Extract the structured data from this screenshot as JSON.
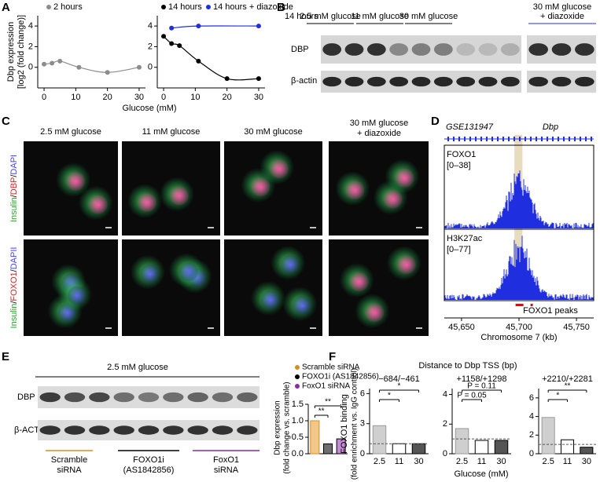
{
  "panel_labels": [
    "A",
    "B",
    "C",
    "D",
    "E",
    "F"
  ],
  "panel_b": {
    "condition": "14 hours",
    "groups": [
      "2.5 mM glucose",
      "11 mM glucose",
      "30 mM glucose"
    ],
    "diazoxide_group": [
      "30 mM glucose",
      "+ diazoxide"
    ],
    "rows": [
      "DBP",
      "β-actin"
    ]
  },
  "panel_c": {
    "columns": [
      "2.5 mM glucose",
      "11 mM glucose",
      "30 mM glucose"
    ],
    "diazoxide_column": [
      "30 mM glucose",
      "+ diazoxide"
    ],
    "rows": [
      [
        "Insulin",
        "/",
        "DBP",
        "/",
        "DAPI"
      ],
      [
        "Insulin",
        "/",
        "FOXO1",
        "/",
        "DAPII"
      ]
    ]
  },
  "panel_d": {
    "dataset": "GSE131947",
    "gene": "Dbp",
    "tracks": [
      [
        "FOXO1",
        "[0–38]"
      ],
      [
        "H3K27ac",
        "[0–77]"
      ]
    ],
    "peaks": "FOXO1 peaks",
    "xlim": [
      45635,
      45765
    ],
    "xticks": [
      {
        "value": 45650,
        "label": "45,650"
      },
      {
        "value": 45700,
        "label": "45,700"
      },
      {
        "value": 45750,
        "label": "45,750"
      }
    ],
    "xlabel": "Chromosome 7 (kb)"
  },
  "panel_e": {
    "condition": "2.5 mM glucose",
    "rows": [
      "DBP",
      "β-ACTIN"
    ],
    "groups": [
      [
        "Scramble",
        "siRNA"
      ],
      [
        "FOXO1i",
        "(AS1842856)"
      ],
      [
        "FoxO1",
        "siRNA"
      ]
    ]
  },
  "panel_f": {
    "title": "Distance to Dbp TSS (bp)",
    "ylabel": [
      "FOXO1 binding",
      "(fold enrichment vs. IgG control)"
    ],
    "xlabel": "Glucose (mM)"
  },
  "chart_data": [
    {
      "type": "line",
      "x": [
        0,
        2.5,
        5,
        11,
        20,
        30
      ],
      "series": [
        {
          "name": "2 hours",
          "color": "#8c8c8c",
          "values": [
            0.3,
            0.4,
            0.6,
            0.0,
            -0.5,
            0.0
          ]
        }
      ],
      "xlim": [
        -2,
        32
      ],
      "ylim": [
        -2,
        5
      ],
      "xticks": [
        0,
        10,
        20,
        30
      ],
      "yticks": [
        0,
        2,
        4
      ],
      "ylabel": [
        "Dbp expression",
        "[log2 (fold change)]"
      ],
      "xlabel": "Glucose (mM)"
    },
    {
      "type": "line",
      "x": [
        0,
        2.5,
        5,
        11,
        20,
        30
      ],
      "series": [
        {
          "name": "14 hours",
          "color": "#000000",
          "values": [
            3.0,
            2.3,
            2.1,
            0.6,
            -1.1,
            -1.1
          ]
        },
        {
          "name": "14 hours + diazoxide",
          "color": "#1f2fe0",
          "x": [
            2.5,
            11,
            30
          ],
          "values": [
            3.8,
            4.0,
            4.0
          ]
        }
      ],
      "xlim": [
        -2,
        32
      ],
      "ylim": [
        -2,
        5
      ],
      "xticks": [
        0,
        10,
        20,
        30
      ],
      "yticks": [
        0,
        2,
        4
      ]
    },
    {
      "type": "bar",
      "categories": [
        "Scramble siRNA",
        "FOXO1i (AS1842856)",
        "FoxO1 siRNA"
      ],
      "values": [
        1.0,
        0.3,
        0.45
      ],
      "colors": [
        "#f2c88a",
        "#6e6e6e",
        "#c58ad6"
      ],
      "label_colors": [
        "#d4901e",
        "#000000",
        "#8a2aa8"
      ],
      "ylim": [
        0,
        1.5
      ],
      "yticks": [
        {
          "value": 0,
          "label": "0.0"
        },
        {
          "value": 0.5,
          "label": "0.5"
        },
        {
          "value": 1,
          "label": "1.0"
        },
        {
          "value": 1.5,
          "label": "1.5"
        }
      ],
      "ylabel": [
        "Dbp expression",
        "(fold change vs. scramble)"
      ],
      "annotations": [
        "**",
        "**"
      ]
    },
    {
      "type": "bar",
      "title": "−684/−461",
      "categories": [
        "2.5",
        "11",
        "30"
      ],
      "values": [
        2.8,
        1.0,
        1.0
      ],
      "colors": [
        "#cfcfcf",
        "#ffffff",
        "#555555"
      ],
      "ylim": [
        0,
        6.5
      ],
      "yticks": [
        0,
        3,
        6
      ],
      "annotations": [
        "*",
        "*"
      ]
    },
    {
      "type": "bar",
      "title": "+1158/+1298",
      "categories": [
        "2.5",
        "11",
        "30"
      ],
      "values": [
        1.7,
        0.9,
        0.9
      ],
      "colors": [
        "#cfcfcf",
        "#ffffff",
        "#555555"
      ],
      "ylim": [
        0,
        4.4
      ],
      "yticks": [
        0,
        2,
        4
      ],
      "annotations": [
        "P = 0.05",
        "P = 0.11"
      ]
    },
    {
      "type": "bar",
      "title": "+2210/+2281",
      "categories": [
        "2.5",
        "11",
        "30"
      ],
      "values": [
        3.9,
        1.5,
        0.7
      ],
      "colors": [
        "#cfcfcf",
        "#ffffff",
        "#555555"
      ],
      "ylim": [
        0,
        7
      ],
      "yticks": [
        0,
        2,
        4,
        6
      ],
      "annotations": [
        "*",
        "**"
      ]
    }
  ]
}
